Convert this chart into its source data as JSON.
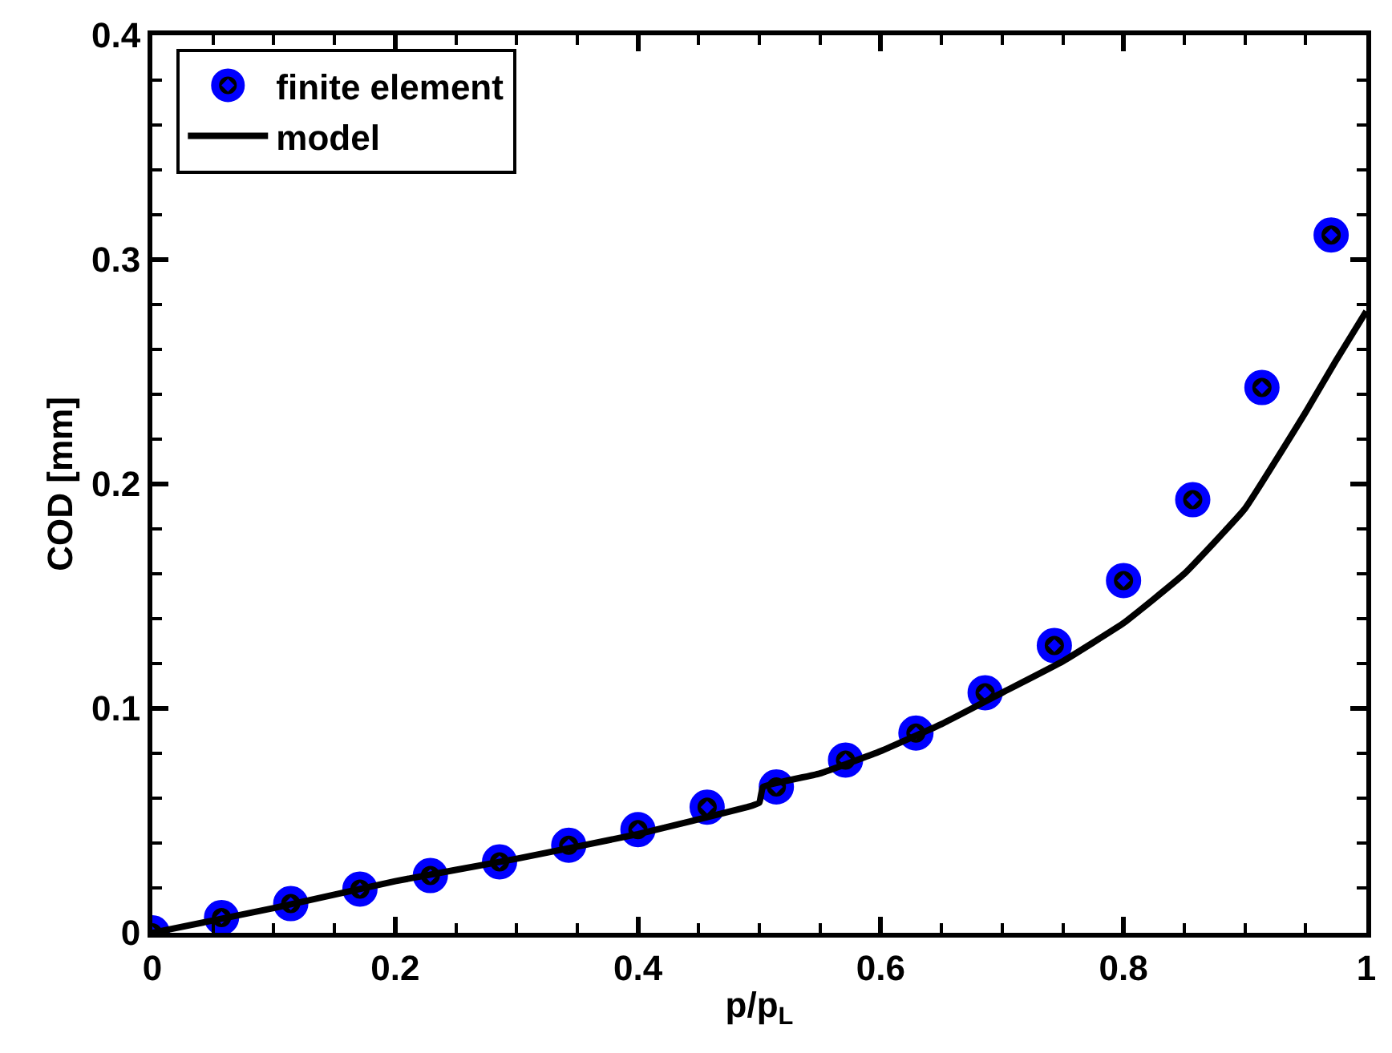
{
  "chart_data": {
    "type": "scatter",
    "xlabel": "p/p$_{L}$",
    "ylabel": "COD [mm]",
    "xlim": [
      0,
      1
    ],
    "ylim": [
      0,
      0.4
    ],
    "xticks": [
      0,
      0.2,
      0.4,
      0.6,
      0.8,
      1
    ],
    "yticks": [
      0,
      0.1,
      0.2,
      0.3,
      0.4
    ],
    "legend": "top left",
    "series": [
      {
        "name": "finite element",
        "marker": "circle",
        "color": "#0000ff",
        "x": [
          0,
          0.057,
          0.114,
          0.171,
          0.229,
          0.286,
          0.343,
          0.4,
          0.457,
          0.514,
          0.571,
          0.629,
          0.686,
          0.743,
          0.8,
          0.857,
          0.914,
          0.971
        ],
        "values": [
          0,
          0.0068,
          0.013,
          0.0195,
          0.0255,
          0.0316,
          0.039,
          0.046,
          0.056,
          0.065,
          0.077,
          0.089,
          0.107,
          0.128,
          0.157,
          0.193,
          0.243,
          0.311
        ]
      },
      {
        "name": "model",
        "type": "line",
        "line_style": "solid",
        "color": "#000000",
        "x": [
          0,
          0.1,
          0.2,
          0.3,
          0.4,
          0.49,
          0.5,
          0.503,
          0.55,
          0.6,
          0.65,
          0.7,
          0.75,
          0.8,
          0.85,
          0.9,
          0.95,
          0.975,
          1.0
        ],
        "values": [
          0,
          0.011,
          0.023,
          0.033,
          0.044,
          0.056,
          0.058,
          0.065,
          0.071,
          0.081,
          0.093,
          0.107,
          0.121,
          0.138,
          0.16,
          0.189,
          0.232,
          0.255,
          0.277
        ]
      }
    ]
  }
}
